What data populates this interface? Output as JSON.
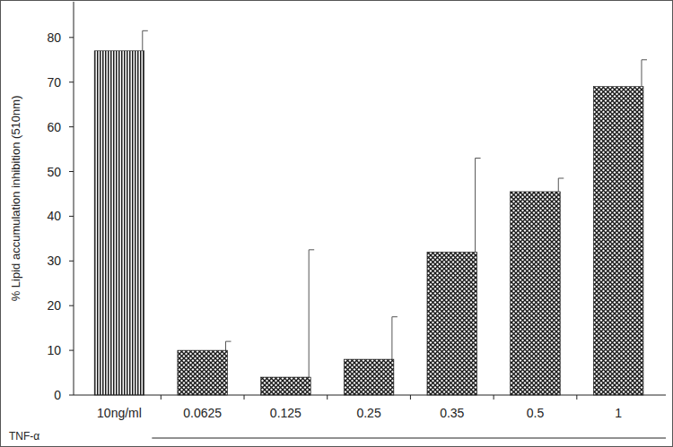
{
  "chart_data": {
    "type": "bar",
    "y_label": "% Lipid accumulation inhibition (510nm)",
    "group_label": "TNF-α",
    "categories": [
      "10ng/ml",
      "0.0625",
      "0.125",
      "0.25",
      "0.35",
      "0.5",
      "1"
    ],
    "values": [
      77,
      10,
      4,
      8,
      32,
      45.5,
      69
    ],
    "errors": [
      4.5,
      2,
      28.5,
      9.5,
      21,
      3,
      6
    ],
    "color": "#1a1a1a",
    "ylim": [
      0,
      88
    ],
    "yticks": [
      0,
      10,
      20,
      30,
      40,
      50,
      60,
      70,
      80
    ],
    "grid": false
  }
}
